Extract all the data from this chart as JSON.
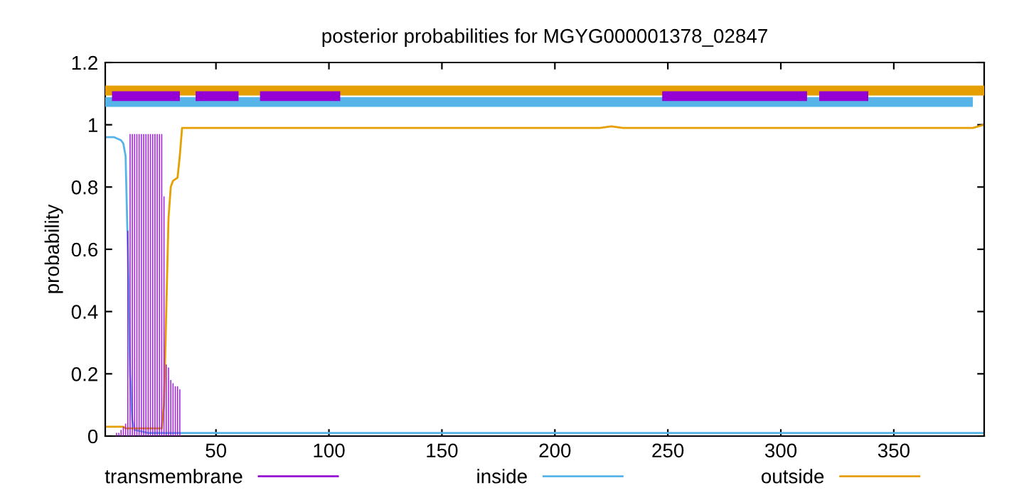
{
  "chart_data": {
    "type": "line",
    "title": "posterior probabilities for MGYG000001378_02847",
    "ylabel": "probability",
    "xlim": [
      1,
      390
    ],
    "ylim": [
      0,
      1.2
    ],
    "xticks": [
      50,
      100,
      150,
      200,
      250,
      300,
      350
    ],
    "yticks": [
      0,
      0.2,
      0.4,
      0.6,
      0.8,
      1,
      1.2
    ],
    "grid": false,
    "legend": "bottom",
    "series": [
      {
        "name": "transmembrane",
        "type": "bar",
        "color": "#9400d3",
        "x": [
          6,
          7,
          8,
          9,
          10,
          11,
          12,
          13,
          14,
          15,
          16,
          17,
          18,
          19,
          20,
          21,
          22,
          23,
          24,
          25,
          26,
          27,
          28,
          29,
          30,
          31,
          32,
          33,
          34
        ],
        "values": [
          0.01,
          0.01,
          0.02,
          0.03,
          0.04,
          0.66,
          0.97,
          0.97,
          0.97,
          0.97,
          0.97,
          0.97,
          0.97,
          0.97,
          0.97,
          0.97,
          0.97,
          0.97,
          0.97,
          0.97,
          0.97,
          0.77,
          0.23,
          0.22,
          0.18,
          0.17,
          0.16,
          0.16,
          0.15
        ]
      },
      {
        "name": "inside",
        "color": "#56b4e9",
        "x": [
          1,
          5,
          8,
          9,
          10,
          11,
          12,
          13,
          14,
          20,
          40,
          100,
          200,
          300,
          390
        ],
        "values": [
          0.96,
          0.96,
          0.95,
          0.94,
          0.9,
          0.6,
          0.2,
          0.05,
          0.02,
          0.01,
          0.01,
          0.01,
          0.01,
          0.01,
          0.01
        ]
      },
      {
        "name": "outside",
        "color": "#e69f00",
        "x": [
          1,
          9,
          10,
          12,
          26,
          27,
          28,
          29,
          30,
          31,
          33,
          34,
          35,
          40,
          100,
          200,
          220,
          225,
          230,
          300,
          385,
          390
        ],
        "values": [
          0.03,
          0.03,
          0.025,
          0.025,
          0.025,
          0.1,
          0.4,
          0.7,
          0.8,
          0.82,
          0.83,
          0.9,
          0.99,
          0.99,
          0.99,
          0.99,
          0.99,
          0.995,
          0.99,
          0.99,
          0.99,
          1.0
        ]
      },
      {
        "color": "#e69f00",
        "x": [
          1,
          390
        ],
        "values": [
          1.11,
          1.11
        ]
      },
      {
        "color": "#56b4e9",
        "x": [
          1,
          385
        ],
        "values": [
          1.073,
          1.073
        ]
      },
      {
        "color": "#9400d3",
        "x": [
          4,
          34,
          37,
          41,
          60,
          65,
          69.5,
          105,
          200,
          247.5,
          311.6,
          314,
          317,
          338.7
        ],
        "values": [
          1.092,
          1.092,
          null,
          1.092,
          1.092,
          null,
          1.092,
          1.092,
          null,
          1.092,
          1.092,
          null,
          1.092,
          1.092
        ]
      }
    ]
  }
}
